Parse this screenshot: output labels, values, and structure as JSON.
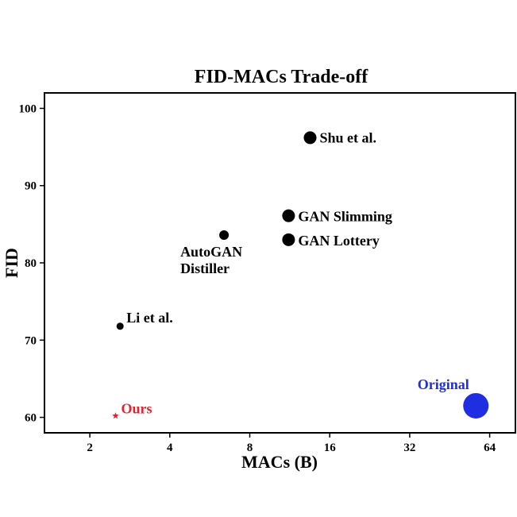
{
  "chart_data": {
    "type": "scatter",
    "title": "FID-MACs Trade-off",
    "xlabel": "MACs (B)",
    "ylabel": "FID",
    "x_scale": "log2",
    "xlim": [
      1.35,
      80
    ],
    "ylim": [
      58,
      102
    ],
    "x_ticks": [
      2,
      4,
      8,
      16,
      32,
      64
    ],
    "y_ticks": [
      60,
      70,
      80,
      90,
      100
    ],
    "grid": false,
    "legend": "none",
    "points": [
      {
        "label": "Shu et al.",
        "x": 13.5,
        "y": 96.2,
        "marker": "circle",
        "size": "large",
        "color": "#000000"
      },
      {
        "label": "GAN Slimming",
        "x": 11.2,
        "y": 86.1,
        "marker": "circle",
        "size": "large",
        "color": "#000000"
      },
      {
        "label": "GAN Lottery",
        "x": 11.2,
        "y": 83.0,
        "marker": "circle",
        "size": "large",
        "color": "#000000"
      },
      {
        "label": "AutoGAN\nDistiller",
        "x": 6.4,
        "y": 83.6,
        "marker": "circle",
        "size": "medium",
        "color": "#000000"
      },
      {
        "label": "Li et al.",
        "x": 2.6,
        "y": 71.8,
        "marker": "circle",
        "size": "small",
        "color": "#000000"
      },
      {
        "label": "Ours",
        "x": 2.5,
        "y": 60.2,
        "marker": "star",
        "size": "small",
        "color": "#e8202a"
      },
      {
        "label": "Original",
        "x": 56.8,
        "y": 61.5,
        "marker": "circle",
        "size": "xlarge",
        "color": "#1f2ee0"
      }
    ]
  }
}
